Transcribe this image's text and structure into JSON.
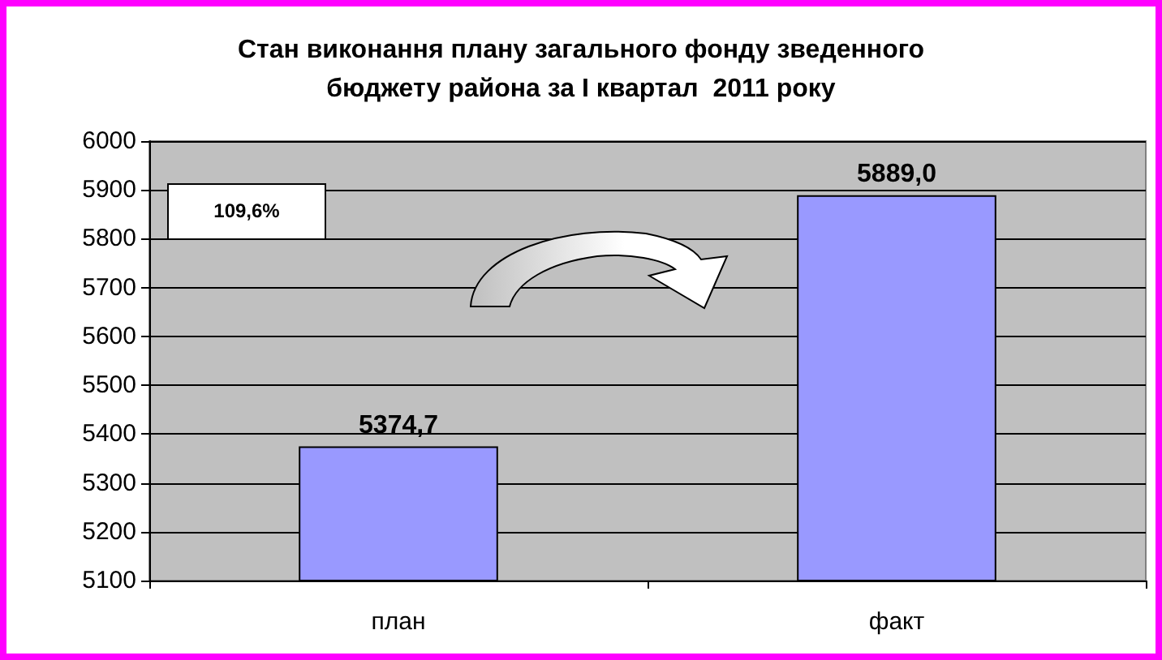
{
  "chart_data": {
    "type": "bar",
    "title": "Стан виконання плану загального фонду зведенного\nбюджету района за I квартал  2011 року",
    "categories": [
      "план",
      "факт"
    ],
    "values": [
      5374.7,
      5889.0
    ],
    "value_labels": [
      "5374,7",
      "5889,0"
    ],
    "color": "#9999ff",
    "ylim": [
      5100,
      6000
    ],
    "yticks": [
      5100,
      5200,
      5300,
      5400,
      5500,
      5600,
      5700,
      5800,
      5900,
      6000
    ],
    "grid": "y",
    "annotations": [
      "109,6%"
    ]
  }
}
